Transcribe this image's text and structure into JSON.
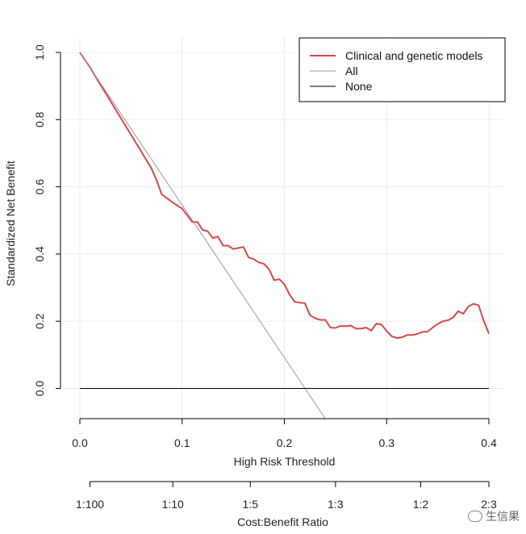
{
  "chart_data": {
    "type": "line",
    "xlabel": "High Risk Threshold",
    "ylabel": "Standardized Net Benefit",
    "xlim": [
      0.0,
      0.4
    ],
    "ylim": [
      -0.09,
      1.0
    ],
    "x_ticks": [
      "0.0",
      "0.1",
      "0.2",
      "0.3",
      "0.4"
    ],
    "y_ticks": [
      "0.0",
      "0.2",
      "0.4",
      "0.6",
      "0.8",
      "1.0"
    ],
    "secondary_axis": {
      "label": "Cost:Benefit Ratio",
      "ticks": [
        {
          "label": "1:100",
          "threshold": 0.0099
        },
        {
          "label": "1:10",
          "threshold": 0.0909
        },
        {
          "label": "1:5",
          "threshold": 0.1667
        },
        {
          "label": "1:3",
          "threshold": 0.25
        },
        {
          "label": "1:2",
          "threshold": 0.3333
        },
        {
          "label": "2:3",
          "threshold": 0.4
        }
      ]
    },
    "grid": true,
    "legend_position": "top-right",
    "series": [
      {
        "name": "Clinical and genetic models",
        "color": "#d9474b",
        "x": [
          0.0,
          0.01,
          0.02,
          0.03,
          0.04,
          0.05,
          0.06,
          0.07,
          0.075,
          0.08,
          0.09,
          0.1,
          0.105,
          0.11,
          0.115,
          0.12,
          0.125,
          0.13,
          0.135,
          0.14,
          0.145,
          0.15,
          0.155,
          0.16,
          0.165,
          0.17,
          0.175,
          0.18,
          0.185,
          0.19,
          0.195,
          0.2,
          0.205,
          0.21,
          0.215,
          0.22,
          0.225,
          0.23,
          0.235,
          0.24,
          0.245,
          0.25,
          0.255,
          0.26,
          0.265,
          0.27,
          0.275,
          0.28,
          0.285,
          0.29,
          0.295,
          0.3,
          0.305,
          0.31,
          0.315,
          0.32,
          0.325,
          0.33,
          0.335,
          0.34,
          0.345,
          0.35,
          0.355,
          0.36,
          0.365,
          0.37,
          0.375,
          0.38,
          0.385,
          0.39,
          0.395,
          0.4
        ],
        "y": [
          1.0,
          0.955,
          0.905,
          0.855,
          0.805,
          0.755,
          0.705,
          0.655,
          0.62,
          0.578,
          0.555,
          0.535,
          0.515,
          0.495,
          0.495,
          0.472,
          0.468,
          0.447,
          0.452,
          0.425,
          0.425,
          0.415,
          0.418,
          0.421,
          0.39,
          0.385,
          0.375,
          0.371,
          0.355,
          0.322,
          0.325,
          0.31,
          0.28,
          0.258,
          0.255,
          0.254,
          0.218,
          0.209,
          0.204,
          0.204,
          0.181,
          0.18,
          0.186,
          0.185,
          0.187,
          0.178,
          0.178,
          0.181,
          0.172,
          0.193,
          0.19,
          0.171,
          0.155,
          0.15,
          0.152,
          0.159,
          0.159,
          0.162,
          0.168,
          0.169,
          0.181,
          0.192,
          0.2,
          0.203,
          0.211,
          0.23,
          0.222,
          0.244,
          0.252,
          0.247,
          0.201,
          0.163
        ],
        "width": 2
      },
      {
        "name": "All",
        "color": "#999999",
        "x": [
          0.0,
          0.24
        ],
        "y": [
          1.0,
          -0.09
        ],
        "width": 1
      },
      {
        "name": "None",
        "color": "#000000",
        "x": [
          0.0,
          0.4
        ],
        "y": [
          0.0,
          0.0
        ],
        "width": 1
      }
    ]
  },
  "watermark": {
    "text": "生信果",
    "icon": "chat-bubble-icon"
  }
}
